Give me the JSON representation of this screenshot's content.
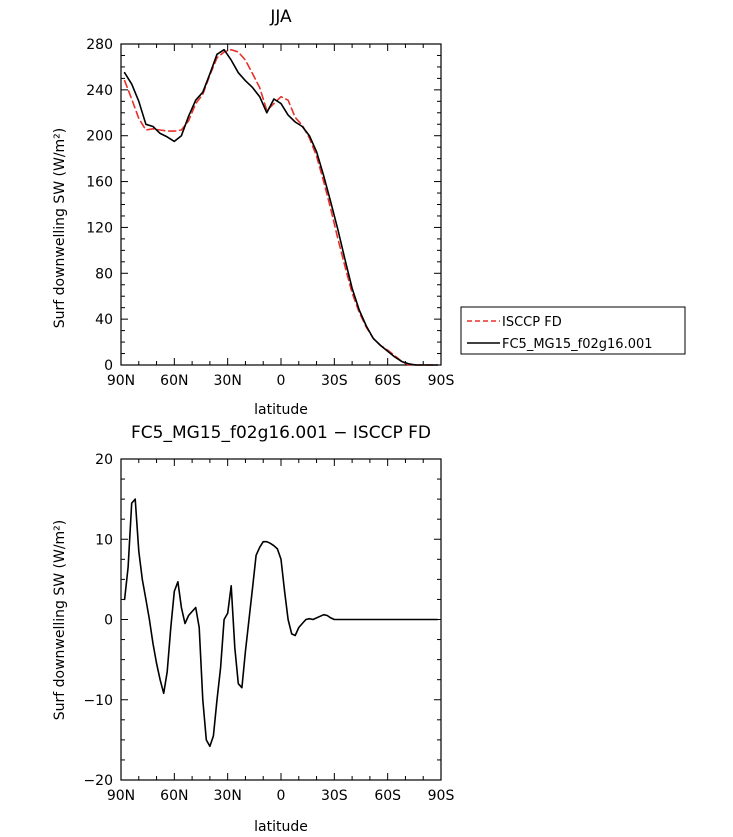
{
  "chart_data": [
    {
      "type": "line",
      "title": "JJA",
      "xlabel": "latitude",
      "ylabel": "Surf downwelling SW (W/m²)",
      "xlim": [
        90,
        -90
      ],
      "ylim": [
        0,
        280
      ],
      "x_ticks": [
        90,
        60,
        30,
        0,
        -30,
        -60,
        -90
      ],
      "x_tick_labels": [
        "90N",
        "60N",
        "30N",
        "0",
        "30S",
        "60S",
        "90S"
      ],
      "y_ticks": [
        0,
        40,
        80,
        120,
        160,
        200,
        240,
        280
      ],
      "y_tick_labels": [
        "0",
        "40",
        "80",
        "120",
        "160",
        "200",
        "240",
        "280"
      ],
      "legend_position": "right",
      "series": [
        {
          "name": "ISCCP FD",
          "color": "#e8302a",
          "dash": "dashed",
          "x": [
            88,
            84,
            80,
            76,
            72,
            68,
            64,
            60,
            56,
            52,
            48,
            44,
            40,
            36,
            32,
            28,
            24,
            20,
            16,
            12,
            8,
            4,
            0,
            -4,
            -8,
            -12,
            -16,
            -20,
            -24,
            -28,
            -32,
            -36,
            -40,
            -44,
            -48,
            -52,
            -56,
            -60,
            -64,
            -68,
            -72,
            -76,
            -80,
            -84,
            -88
          ],
          "y": [
            248,
            232,
            215,
            205,
            206,
            205,
            204,
            204,
            205,
            213,
            228,
            236,
            253,
            268,
            273,
            275,
            273,
            266,
            254,
            242,
            222,
            228,
            234,
            231,
            216,
            209,
            198,
            182,
            160,
            136,
            110,
            86,
            63,
            46,
            33,
            23,
            17,
            13,
            8,
            3,
            0,
            0,
            0,
            0,
            0
          ]
        },
        {
          "name": "FC5_MG15_f02g16.001",
          "color": "#000000",
          "dash": "solid",
          "x": [
            88,
            84,
            80,
            76,
            72,
            68,
            64,
            60,
            56,
            52,
            48,
            44,
            40,
            36,
            32,
            28,
            24,
            20,
            16,
            12,
            8,
            4,
            0,
            -4,
            -8,
            -12,
            -16,
            -20,
            -24,
            -28,
            -32,
            -36,
            -40,
            -44,
            -48,
            -52,
            -56,
            -60,
            -64,
            -68,
            -72,
            -76,
            -80,
            -84,
            -88
          ],
          "y": [
            255,
            245,
            230,
            210,
            208,
            202,
            199,
            195,
            200,
            217,
            231,
            238,
            254,
            271,
            275,
            266,
            255,
            248,
            242,
            234,
            220,
            232,
            228,
            218,
            212,
            208,
            200,
            186,
            165,
            142,
            118,
            92,
            67,
            48,
            34,
            23,
            17,
            12,
            7,
            3,
            1,
            0,
            0,
            0,
            0
          ]
        }
      ]
    },
    {
      "type": "line",
      "title": "FC5_MG15_f02g16.001 − ISCCP FD",
      "xlabel": "latitude",
      "ylabel": "Surf downwelling SW (W/m²)",
      "xlim": [
        90,
        -90
      ],
      "ylim": [
        -20,
        20
      ],
      "x_ticks": [
        90,
        60,
        30,
        0,
        -30,
        -60,
        -90
      ],
      "x_tick_labels": [
        "90N",
        "60N",
        "30N",
        "0",
        "30S",
        "60S",
        "90S"
      ],
      "y_ticks": [
        -20,
        -10,
        0,
        10,
        20
      ],
      "y_tick_labels": [
        "−20",
        "−10",
        "0",
        "10",
        "20"
      ],
      "series": [
        {
          "color": "#000000",
          "dash": "solid",
          "x": [
            88,
            86,
            84,
            82,
            80,
            78,
            76,
            74,
            72,
            70,
            68,
            66,
            64,
            62,
            60,
            58,
            56,
            54,
            52,
            50,
            48,
            46,
            44,
            42,
            40,
            38,
            36,
            34,
            32,
            30,
            28,
            26,
            24,
            22,
            20,
            18,
            16,
            14,
            12,
            10,
            8,
            6,
            4,
            2,
            0,
            -2,
            -4,
            -6,
            -8,
            -10,
            -12,
            -14,
            -16,
            -18,
            -20,
            -22,
            -24,
            -26,
            -28,
            -30,
            -32,
            -34,
            -36,
            -38,
            -40,
            -42,
            -44,
            -46,
            -48,
            -50,
            -52,
            -54,
            -56,
            -58,
            -60,
            -62,
            -64,
            -66,
            -68,
            -70,
            -72,
            -74,
            -76,
            -78,
            -80,
            -82,
            -84,
            -86,
            -88
          ],
          "y": [
            2.5,
            6.5,
            14.5,
            15,
            8.5,
            5,
            2.5,
            0,
            -3,
            -5.5,
            -7.5,
            -9.2,
            -6.5,
            -1,
            3.5,
            4.7,
            1.5,
            -0.5,
            0.5,
            1,
            1.5,
            -1,
            -10,
            -15,
            -15.8,
            -14.5,
            -10,
            -6,
            0,
            0.8,
            4.2,
            -3.5,
            -8,
            -8.5,
            -4,
            0,
            4,
            8,
            9,
            9.7,
            9.7,
            9.5,
            9.2,
            8.8,
            7.5,
            3.5,
            0,
            -1.8,
            -2,
            -1,
            -0.5,
            0,
            0.1,
            0,
            0.2,
            0.4,
            0.6,
            0.5,
            0.2,
            0,
            0,
            0,
            0,
            0,
            0,
            0,
            0,
            0,
            0,
            0,
            0,
            0,
            0,
            0,
            0,
            0,
            0,
            0,
            0,
            0,
            0,
            0,
            0,
            0,
            0,
            0,
            0,
            0,
            0
          ]
        }
      ]
    }
  ]
}
